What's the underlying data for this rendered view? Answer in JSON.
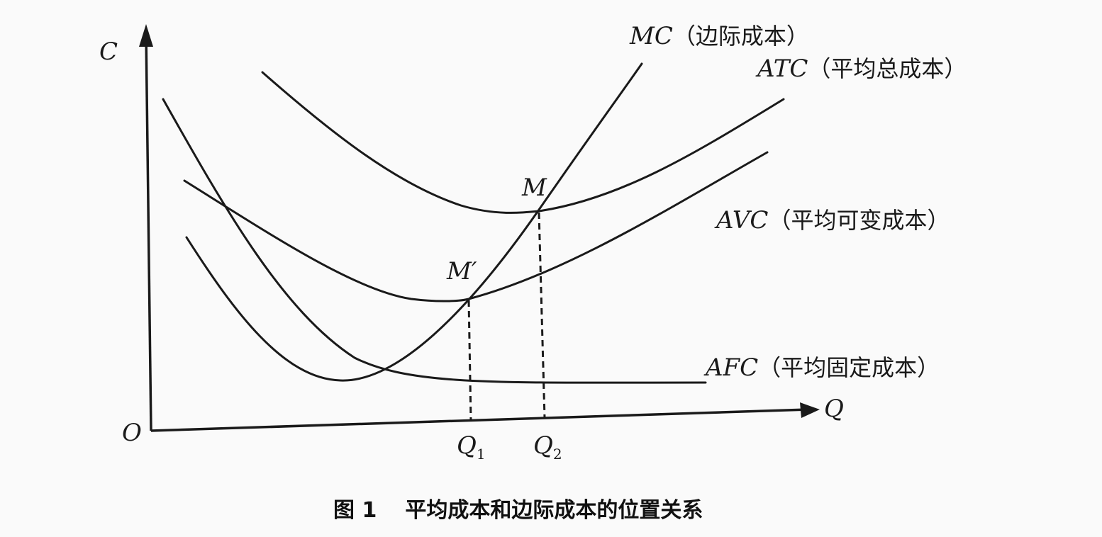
{
  "axes": {
    "y_label": "C",
    "x_label": "Q",
    "origin_label": "O"
  },
  "points": {
    "M": "M",
    "M_prime": "M′"
  },
  "ticks": {
    "q1": "Q",
    "q1_sub": "1",
    "q2": "Q",
    "q2_sub": "2"
  },
  "curves": {
    "mc": {
      "abbr": "MC",
      "name": "（边际成本）"
    },
    "atc": {
      "abbr": "ATC",
      "name": "（平均总成本）"
    },
    "avc": {
      "abbr": "AVC",
      "name": "（平均可变成本）"
    },
    "afc": {
      "abbr": "AFC",
      "name": "（平均固定成本）"
    }
  },
  "caption": {
    "number": "图 1",
    "text": "平均成本和边际成本的位置关系"
  }
}
